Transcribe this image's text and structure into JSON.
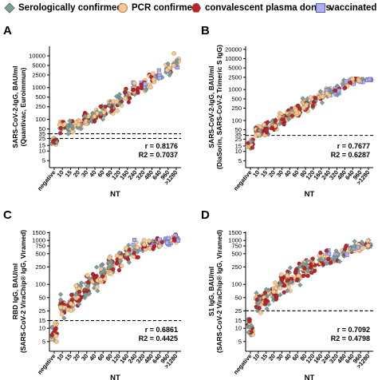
{
  "legend": [
    {
      "label": "Serologically confirmed",
      "marker": "diamond",
      "color": "#7f9e98"
    },
    {
      "label": "PCR confirmed",
      "marker": "circle",
      "color": "#f6c893"
    },
    {
      "label": "convalescent plasma donors",
      "marker": "hexagon",
      "color": "#b7262c"
    },
    {
      "label": "vaccinated",
      "marker": "square",
      "color": "#aeb0ea"
    }
  ],
  "colors": {
    "serologically_confirmed": "#7f9e98",
    "pcr_confirmed": "#f6c893",
    "convalescent_plasma_donors": "#b7262c",
    "vaccinated": "#aeb0ea"
  },
  "chart_data": [
    {
      "panel": "A",
      "type": "scatter",
      "xlabel": "NT",
      "ylabel": [
        "SARS-CoV-2-IgG, BAU/ml",
        "(Quantivac, Euroimmun)"
      ],
      "categories": [
        "negative",
        "10",
        "15",
        "20",
        "30",
        "40",
        "60",
        "80",
        "120",
        "160",
        "240",
        "320",
        "480",
        "640",
        "960",
        ">1280"
      ],
      "yscale": "log",
      "ylim": [
        3,
        20000
      ],
      "yticks": [
        5,
        10,
        15,
        25,
        35,
        50,
        100,
        250,
        500,
        1000,
        2500,
        5000,
        10000
      ],
      "cutoff": 35,
      "cutoff_secondary": 25,
      "stats": [
        "r = 0.8176",
        "R2 = 0.7037"
      ],
      "series_centers": [
        {
          "name": "negative",
          "center": 20,
          "spread": 8
        },
        {
          "name": "10",
          "center": 60,
          "spread": 30
        },
        {
          "name": "15",
          "center": 55,
          "spread": 30
        },
        {
          "name": "20",
          "center": 70,
          "spread": 30
        },
        {
          "name": "30",
          "center": 90,
          "spread": 50
        },
        {
          "name": "40",
          "center": 120,
          "spread": 60
        },
        {
          "name": "60",
          "center": 160,
          "spread": 80
        },
        {
          "name": "80",
          "center": 260,
          "spread": 150
        },
        {
          "name": "120",
          "center": 350,
          "spread": 200
        },
        {
          "name": "160",
          "center": 600,
          "spread": 300
        },
        {
          "name": "240",
          "center": 900,
          "spread": 500
        },
        {
          "name": "320",
          "center": 1100,
          "spread": 600
        },
        {
          "name": "480",
          "center": 1800,
          "spread": 900
        },
        {
          "name": "640",
          "center": 2500,
          "spread": 1500
        },
        {
          "name": "960",
          "center": 3500,
          "spread": 2000
        },
        {
          "name": ">1280",
          "center": 6000,
          "spread": 4000
        }
      ]
    },
    {
      "panel": "B",
      "type": "scatter",
      "xlabel": "NT",
      "ylabel": [
        "SARS-CoV-2-IgG, BAU/ml",
        "(DiaSorin, SARS-CoV-2 Trimeric S IgG)"
      ],
      "categories": [
        "negative",
        "10",
        "15",
        "20",
        "30",
        "40",
        "60",
        "80",
        "120",
        "160",
        "240",
        "320",
        "480",
        "640",
        "960",
        ">1280"
      ],
      "yscale": "log",
      "ylim": [
        3,
        25000
      ],
      "yticks": [
        5,
        10,
        15,
        25,
        35,
        50,
        100,
        250,
        500,
        1000,
        2500,
        5000,
        10000,
        20000
      ],
      "cutoff": 33,
      "stats": [
        "r = 0.7677",
        "R2 = 0.6287"
      ],
      "series_centers": [
        {
          "name": "negative",
          "center": 18,
          "spread": 8
        },
        {
          "name": "10",
          "center": 45,
          "spread": 25
        },
        {
          "name": "15",
          "center": 55,
          "spread": 30
        },
        {
          "name": "20",
          "center": 70,
          "spread": 35
        },
        {
          "name": "30",
          "center": 110,
          "spread": 60
        },
        {
          "name": "40",
          "center": 150,
          "spread": 80
        },
        {
          "name": "60",
          "center": 200,
          "spread": 100
        },
        {
          "name": "80",
          "center": 300,
          "spread": 150
        },
        {
          "name": "120",
          "center": 420,
          "spread": 200
        },
        {
          "name": "160",
          "center": 600,
          "spread": 300
        },
        {
          "name": "240",
          "center": 800,
          "spread": 400
        },
        {
          "name": "320",
          "center": 1000,
          "spread": 500
        },
        {
          "name": "480",
          "center": 1500,
          "spread": 700
        },
        {
          "name": "640",
          "center": 1900,
          "spread": 400
        },
        {
          "name": "960",
          "center": 2000,
          "spread": 300
        },
        {
          "name": ">1280",
          "center": 2080,
          "spread": 100
        }
      ]
    },
    {
      "panel": "C",
      "type": "scatter",
      "xlabel": "NT",
      "ylabel": [
        "RBD IgG, BAU/ml",
        "(SARS-CoV-2 ViraChip® IgG, Viramed)"
      ],
      "categories": [
        "negative",
        "10",
        "15",
        "20",
        "30",
        "40",
        "60",
        "80",
        "120",
        "160",
        "240",
        "320",
        "480",
        "640",
        "960",
        ">1280"
      ],
      "yscale": "log",
      "ylim": [
        3,
        1600
      ],
      "yticks": [
        5,
        10,
        15,
        25,
        50,
        100,
        250,
        500,
        750,
        1000,
        1500
      ],
      "cutoff": 15,
      "stats": [
        "r = 0.6861",
        "R2 = 0.4425"
      ],
      "series_centers": [
        {
          "name": "negative",
          "center": 8,
          "spread": 5
        },
        {
          "name": "10",
          "center": 30,
          "spread": 20
        },
        {
          "name": "15",
          "center": 40,
          "spread": 25
        },
        {
          "name": "20",
          "center": 60,
          "spread": 35
        },
        {
          "name": "30",
          "center": 90,
          "spread": 60
        },
        {
          "name": "40",
          "center": 120,
          "spread": 80
        },
        {
          "name": "60",
          "center": 180,
          "spread": 100
        },
        {
          "name": "80",
          "center": 250,
          "spread": 150
        },
        {
          "name": "120",
          "center": 350,
          "spread": 200
        },
        {
          "name": "160",
          "center": 500,
          "spread": 250
        },
        {
          "name": "240",
          "center": 600,
          "spread": 300
        },
        {
          "name": "320",
          "center": 700,
          "spread": 300
        },
        {
          "name": "480",
          "center": 800,
          "spread": 300
        },
        {
          "name": "640",
          "center": 900,
          "spread": 250
        },
        {
          "name": "960",
          "center": 1000,
          "spread": 200
        },
        {
          "name": ">1280",
          "center": 1100,
          "spread": 200
        }
      ]
    },
    {
      "panel": "D",
      "type": "scatter",
      "xlabel": "NT",
      "ylabel": [
        "S1 IgG, BAU/ml",
        "(SARS-CoV-2 ViraChip® IgG, Viramed)"
      ],
      "categories": [
        "negative",
        "10",
        "15",
        "20",
        "30",
        "40",
        "60",
        "80",
        "120",
        "160",
        "240",
        "320",
        "480",
        "640",
        "960",
        ">1280"
      ],
      "yscale": "log",
      "ylim": [
        3,
        1600
      ],
      "yticks": [
        5,
        10,
        15,
        25,
        50,
        100,
        250,
        500,
        750,
        1000,
        1500
      ],
      "cutoff": 25,
      "stats": [
        "r = 0.7092",
        "R2 = 0.4798"
      ],
      "series_centers": [
        {
          "name": "negative",
          "center": 10,
          "spread": 6
        },
        {
          "name": "10",
          "center": 40,
          "spread": 25
        },
        {
          "name": "15",
          "center": 50,
          "spread": 30
        },
        {
          "name": "20",
          "center": 70,
          "spread": 40
        },
        {
          "name": "30",
          "center": 100,
          "spread": 60
        },
        {
          "name": "40",
          "center": 130,
          "spread": 80
        },
        {
          "name": "60",
          "center": 170,
          "spread": 100
        },
        {
          "name": "80",
          "center": 220,
          "spread": 120
        },
        {
          "name": "120",
          "center": 280,
          "spread": 150
        },
        {
          "name": "160",
          "center": 350,
          "spread": 150
        },
        {
          "name": "240",
          "center": 400,
          "spread": 150
        },
        {
          "name": "320",
          "center": 450,
          "spread": 150
        },
        {
          "name": "480",
          "center": 550,
          "spread": 200
        },
        {
          "name": "640",
          "center": 650,
          "spread": 200
        },
        {
          "name": "960",
          "center": 750,
          "spread": 200
        },
        {
          "name": ">1280",
          "center": 850,
          "spread": 200
        }
      ]
    }
  ]
}
